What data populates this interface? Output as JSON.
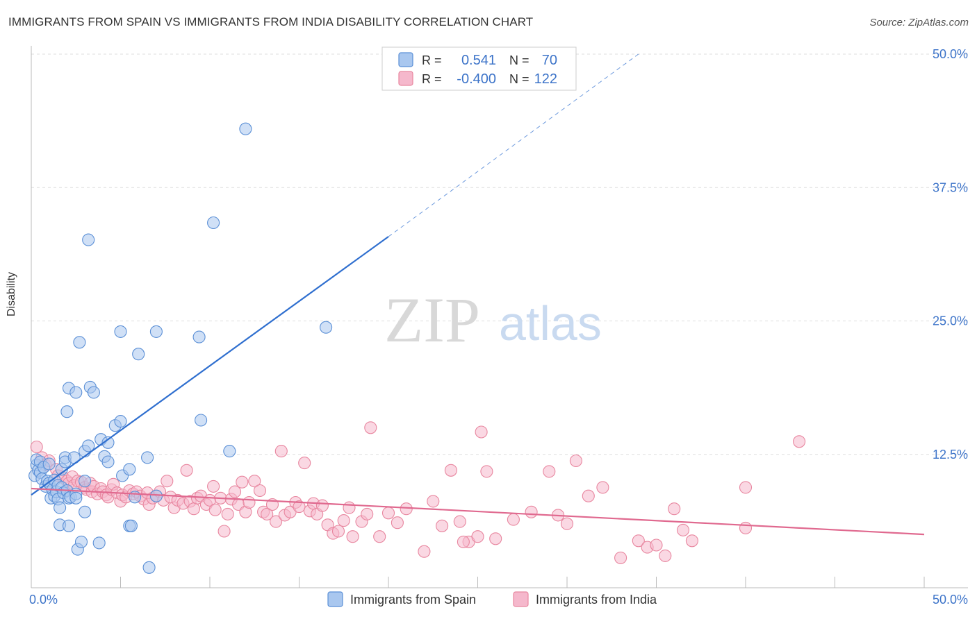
{
  "header": {
    "title": "IMMIGRANTS FROM SPAIN VS IMMIGRANTS FROM INDIA DISABILITY CORRELATION CHART",
    "source": "Source: ZipAtlas.com"
  },
  "watermark": {
    "zip": "ZIP",
    "atlas": "atlas"
  },
  "colors": {
    "spain_fill": "#a9c7ef",
    "spain_stroke": "#5a8fd6",
    "spain_line": "#2f6fcf",
    "india_fill": "#f5b8cc",
    "india_stroke": "#e8869f",
    "india_line": "#e0698f",
    "axis_text": "#3d74c9",
    "grid": "#dddddd"
  },
  "legend": {
    "r_label": "R =",
    "n_label": "N =",
    "spain": {
      "r": "0.541",
      "n": "70"
    },
    "india": {
      "r": "-0.400",
      "n": "122"
    }
  },
  "chart_data": {
    "type": "scatter",
    "title": "IMMIGRANTS FROM SPAIN VS IMMIGRANTS FROM INDIA DISABILITY CORRELATION CHART",
    "xlabel": "",
    "ylabel": "Disability",
    "xlim": [
      0,
      50
    ],
    "ylim": [
      0,
      50
    ],
    "x_tick_labels": [
      {
        "value": 0,
        "label": "0.0%"
      },
      {
        "value": 50,
        "label": "50.0%"
      }
    ],
    "y_tick_labels": [
      {
        "value": 12.5,
        "label": "12.5%"
      },
      {
        "value": 25,
        "label": "25.0%"
      },
      {
        "value": 37.5,
        "label": "37.5%"
      },
      {
        "value": 50,
        "label": "50.0%"
      }
    ],
    "grid": true,
    "legend_position": "top-center",
    "series": [
      {
        "name": "Immigrants from Spain",
        "color": "#a9c7ef",
        "r": 0.541,
        "n": 70,
        "trend": {
          "x0": 0,
          "y0": 8.7,
          "x1": 20,
          "y1": 32.9,
          "dash_to_x": 34,
          "dash_to_y": 50
        },
        "points": [
          [
            0.2,
            10.5
          ],
          [
            0.3,
            11.5
          ],
          [
            0.3,
            12.0
          ],
          [
            0.4,
            11.0
          ],
          [
            0.5,
            10.8
          ],
          [
            0.5,
            11.8
          ],
          [
            0.6,
            10.2
          ],
          [
            0.7,
            11.3
          ],
          [
            0.8,
            9.5
          ],
          [
            0.9,
            10.0
          ],
          [
            1.0,
            9.8
          ],
          [
            1.0,
            11.6
          ],
          [
            1.1,
            8.4
          ],
          [
            1.2,
            9.2
          ],
          [
            1.3,
            8.6
          ],
          [
            1.3,
            10.1
          ],
          [
            1.4,
            9.0
          ],
          [
            1.5,
            8.3
          ],
          [
            1.5,
            9.6
          ],
          [
            1.6,
            7.5
          ],
          [
            1.6,
            5.9
          ],
          [
            1.7,
            9.4
          ],
          [
            1.7,
            11.1
          ],
          [
            1.8,
            8.9
          ],
          [
            1.9,
            12.2
          ],
          [
            1.9,
            11.8
          ],
          [
            2.0,
            9.1
          ],
          [
            2.0,
            16.5
          ],
          [
            2.1,
            18.7
          ],
          [
            2.1,
            8.4
          ],
          [
            2.1,
            5.8
          ],
          [
            2.2,
            8.5
          ],
          [
            2.4,
            12.2
          ],
          [
            2.5,
            8.8
          ],
          [
            2.5,
            8.4
          ],
          [
            2.5,
            18.3
          ],
          [
            2.7,
            23.0
          ],
          [
            2.6,
            3.6
          ],
          [
            2.8,
            4.3
          ],
          [
            3.0,
            10.0
          ],
          [
            3.0,
            12.8
          ],
          [
            3.0,
            7.1
          ],
          [
            3.2,
            13.3
          ],
          [
            3.2,
            32.6
          ],
          [
            3.3,
            18.8
          ],
          [
            3.5,
            18.3
          ],
          [
            3.8,
            4.2
          ],
          [
            3.9,
            13.9
          ],
          [
            4.1,
            12.3
          ],
          [
            4.3,
            13.6
          ],
          [
            4.3,
            11.8
          ],
          [
            4.7,
            15.2
          ],
          [
            5.0,
            15.6
          ],
          [
            5.0,
            24.0
          ],
          [
            5.1,
            10.5
          ],
          [
            5.5,
            11.1
          ],
          [
            5.5,
            5.8
          ],
          [
            5.6,
            5.8
          ],
          [
            6.0,
            21.9
          ],
          [
            6.5,
            12.2
          ],
          [
            6.6,
            1.9
          ],
          [
            7.0,
            24.0
          ],
          [
            9.4,
            23.5
          ],
          [
            9.5,
            15.7
          ],
          [
            10.2,
            34.2
          ],
          [
            11.1,
            12.8
          ],
          [
            12.0,
            43.0
          ],
          [
            16.5,
            24.4
          ],
          [
            7.0,
            8.6
          ],
          [
            5.8,
            8.5
          ]
        ]
      },
      {
        "name": "Immigrants from India",
        "color": "#f5b8cc",
        "r": -0.4,
        "n": 122,
        "trend": {
          "x0": 0,
          "y0": 9.3,
          "x1": 50,
          "y1": 5.0
        },
        "points": [
          [
            0.3,
            13.2
          ],
          [
            0.6,
            12.2
          ],
          [
            0.8,
            11.5
          ],
          [
            1.0,
            11.9
          ],
          [
            1.4,
            11.1
          ],
          [
            1.5,
            10.5
          ],
          [
            1.8,
            10.3
          ],
          [
            2.0,
            10.0
          ],
          [
            2.1,
            9.8
          ],
          [
            2.3,
            10.4
          ],
          [
            2.4,
            9.6
          ],
          [
            2.6,
            10.0
          ],
          [
            2.8,
            9.9
          ],
          [
            3.0,
            9.4
          ],
          [
            3.1,
            9.2
          ],
          [
            3.3,
            9.8
          ],
          [
            3.4,
            9.0
          ],
          [
            3.5,
            9.5
          ],
          [
            3.7,
            8.8
          ],
          [
            3.9,
            9.3
          ],
          [
            4.0,
            9.0
          ],
          [
            4.2,
            8.7
          ],
          [
            4.3,
            8.5
          ],
          [
            4.5,
            9.2
          ],
          [
            4.6,
            9.7
          ],
          [
            4.8,
            8.9
          ],
          [
            5.0,
            8.1
          ],
          [
            5.1,
            8.7
          ],
          [
            5.3,
            8.5
          ],
          [
            5.5,
            9.1
          ],
          [
            5.7,
            8.8
          ],
          [
            5.9,
            9.0
          ],
          [
            6.1,
            8.6
          ],
          [
            6.3,
            8.3
          ],
          [
            6.5,
            8.9
          ],
          [
            6.6,
            7.8
          ],
          [
            6.8,
            8.4
          ],
          [
            7.0,
            8.6
          ],
          [
            7.2,
            9.0
          ],
          [
            7.4,
            8.2
          ],
          [
            7.6,
            10.0
          ],
          [
            7.8,
            8.5
          ],
          [
            8.0,
            7.5
          ],
          [
            8.2,
            8.2
          ],
          [
            8.5,
            7.9
          ],
          [
            8.7,
            11.0
          ],
          [
            8.9,
            8.1
          ],
          [
            9.1,
            7.4
          ],
          [
            9.3,
            8.4
          ],
          [
            9.5,
            8.6
          ],
          [
            9.8,
            7.8
          ],
          [
            10.0,
            8.2
          ],
          [
            10.3,
            7.3
          ],
          [
            10.6,
            8.4
          ],
          [
            10.8,
            5.3
          ],
          [
            11.0,
            6.9
          ],
          [
            11.2,
            8.3
          ],
          [
            11.4,
            9.0
          ],
          [
            11.6,
            7.8
          ],
          [
            11.8,
            9.9
          ],
          [
            12.0,
            7.1
          ],
          [
            12.2,
            8.0
          ],
          [
            12.5,
            10.0
          ],
          [
            12.8,
            9.1
          ],
          [
            13.0,
            7.1
          ],
          [
            13.2,
            6.9
          ],
          [
            13.5,
            7.8
          ],
          [
            13.7,
            6.2
          ],
          [
            14.0,
            12.8
          ],
          [
            14.2,
            6.8
          ],
          [
            14.5,
            7.1
          ],
          [
            14.8,
            8.0
          ],
          [
            15.0,
            7.6
          ],
          [
            15.3,
            11.7
          ],
          [
            15.6,
            7.2
          ],
          [
            15.8,
            7.9
          ],
          [
            16.0,
            6.9
          ],
          [
            16.3,
            7.7
          ],
          [
            16.6,
            5.9
          ],
          [
            16.9,
            5.1
          ],
          [
            17.2,
            5.3
          ],
          [
            17.5,
            6.3
          ],
          [
            17.8,
            7.5
          ],
          [
            18.0,
            4.8
          ],
          [
            18.5,
            6.2
          ],
          [
            18.8,
            6.9
          ],
          [
            19.0,
            15.0
          ],
          [
            19.5,
            4.8
          ],
          [
            20.0,
            7.0
          ],
          [
            20.5,
            6.1
          ],
          [
            21.0,
            7.4
          ],
          [
            22.0,
            3.4
          ],
          [
            22.5,
            8.1
          ],
          [
            23.0,
            5.8
          ],
          [
            23.5,
            11.0
          ],
          [
            24.0,
            6.2
          ],
          [
            24.5,
            4.3
          ],
          [
            25.0,
            4.8
          ],
          [
            25.2,
            14.6
          ],
          [
            25.5,
            10.9
          ],
          [
            26.0,
            4.6
          ],
          [
            27.0,
            6.4
          ],
          [
            28.0,
            7.1
          ],
          [
            29.0,
            10.9
          ],
          [
            29.5,
            6.8
          ],
          [
            30.0,
            6.0
          ],
          [
            30.5,
            11.9
          ],
          [
            31.2,
            8.6
          ],
          [
            32.0,
            9.4
          ],
          [
            33.0,
            2.8
          ],
          [
            34.0,
            4.4
          ],
          [
            34.5,
            3.8
          ],
          [
            35.0,
            4.0
          ],
          [
            35.5,
            3.0
          ],
          [
            36.0,
            7.4
          ],
          [
            36.5,
            5.4
          ],
          [
            37.0,
            4.4
          ],
          [
            40.0,
            9.4
          ],
          [
            40.0,
            5.6
          ],
          [
            43.0,
            13.7
          ],
          [
            24.2,
            4.3
          ],
          [
            10.2,
            9.5
          ]
        ]
      }
    ]
  },
  "bottom_legend": {
    "spain": "Immigrants from Spain",
    "india": "Immigrants from India"
  }
}
